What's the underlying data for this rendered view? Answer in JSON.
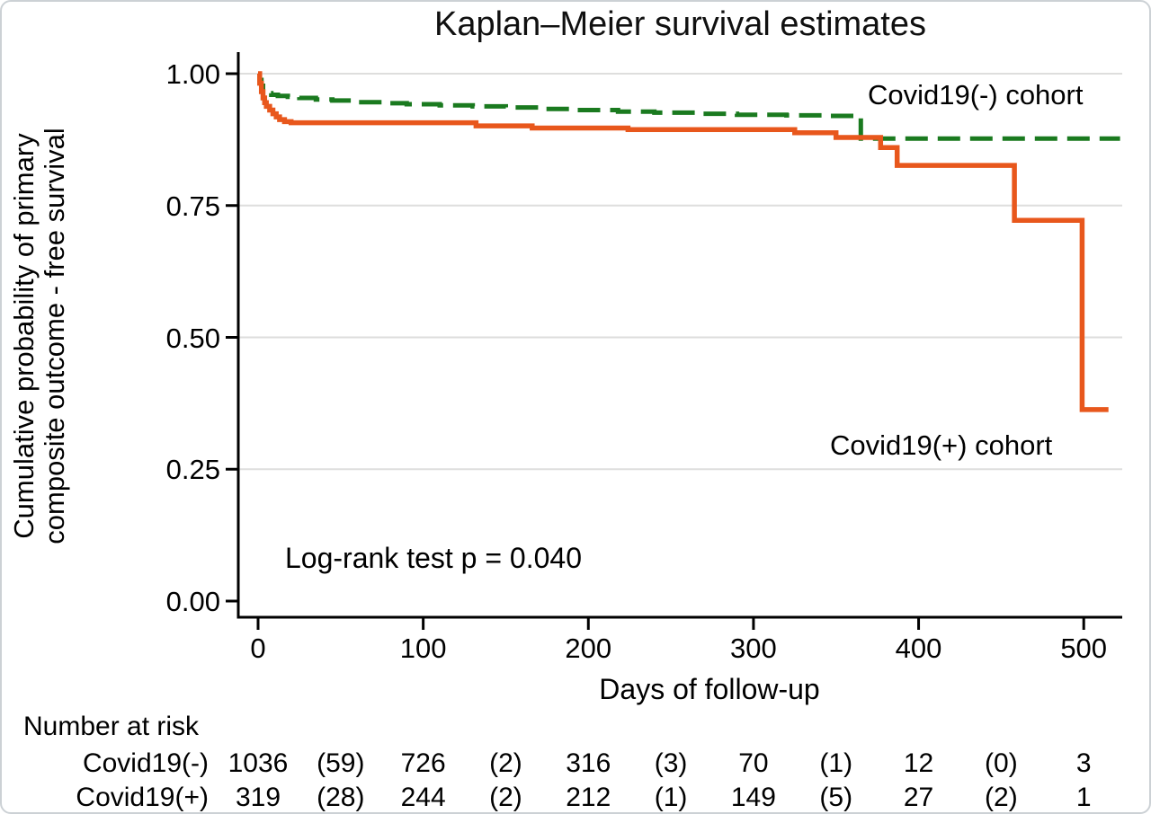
{
  "figure": {
    "title": "Kaplan–Meier survival estimates",
    "y_axis": {
      "label_line1": "Cumulative probability of primary",
      "label_line2": "composite outcome - free survival",
      "ticks": [
        {
          "label": "1.00",
          "v": 1.0
        },
        {
          "label": "0.75",
          "v": 0.75
        },
        {
          "label": "0.50",
          "v": 0.5
        },
        {
          "label": "0.25",
          "v": 0.25
        },
        {
          "label": "0.00",
          "v": 0.0
        }
      ]
    },
    "x_axis": {
      "title": "Days of follow-up",
      "ticks": [
        {
          "label": "0",
          "v": 0
        },
        {
          "label": "100",
          "v": 100
        },
        {
          "label": "200",
          "v": 200
        },
        {
          "label": "300",
          "v": 300
        },
        {
          "label": "400",
          "v": 400
        },
        {
          "label": "500",
          "v": 500
        }
      ]
    },
    "annotations": {
      "covid_neg_label": "Covid19(-) cohort",
      "covid_pos_label": "Covid19(+) cohort",
      "logrank_text": "Log-rank test p = 0.040"
    },
    "colors": {
      "covid_neg": "#1a7a1f",
      "covid_pos": "#e8571c",
      "gridline": "#dededd",
      "axis": "#000000"
    }
  },
  "chart_data": {
    "type": "line",
    "subtype": "kaplan-meier-step",
    "title": "Kaplan–Meier survival estimates",
    "xlabel": "Days of follow-up",
    "ylabel": "Cumulative probability of primary composite outcome - free survival",
    "xlim": [
      -12,
      523
    ],
    "ylim": [
      -0.03,
      1.02
    ],
    "grid": "horizontal",
    "legend_position": "in-plot text labels",
    "logrank_p": "0.040",
    "series": [
      {
        "name": "Covid19(-) cohort",
        "color": "#1a7a1f",
        "style": "dashed",
        "end_day": 522,
        "steps": [
          [
            0,
            1.0
          ],
          [
            1,
            0.988
          ],
          [
            2,
            0.977
          ],
          [
            3,
            0.97
          ],
          [
            5,
            0.963
          ],
          [
            8,
            0.96
          ],
          [
            12,
            0.958
          ],
          [
            18,
            0.956
          ],
          [
            25,
            0.954
          ],
          [
            35,
            0.951
          ],
          [
            45,
            0.949
          ],
          [
            60,
            0.946
          ],
          [
            75,
            0.944
          ],
          [
            90,
            0.942
          ],
          [
            110,
            0.94
          ],
          [
            130,
            0.938
          ],
          [
            150,
            0.936
          ],
          [
            170,
            0.933
          ],
          [
            190,
            0.931
          ],
          [
            218,
            0.928
          ],
          [
            240,
            0.926
          ],
          [
            265,
            0.924
          ],
          [
            290,
            0.922
          ],
          [
            320,
            0.921
          ],
          [
            345,
            0.92
          ],
          [
            365,
            0.877
          ]
        ]
      },
      {
        "name": "Covid19(+) cohort",
        "color": "#e8571c",
        "style": "solid",
        "end_day": 515,
        "steps": [
          [
            0,
            1.0
          ],
          [
            1,
            0.982
          ],
          [
            2,
            0.966
          ],
          [
            3,
            0.954
          ],
          [
            4,
            0.945
          ],
          [
            5,
            0.938
          ],
          [
            7,
            0.931
          ],
          [
            9,
            0.924
          ],
          [
            11,
            0.918
          ],
          [
            13,
            0.913
          ],
          [
            16,
            0.909
          ],
          [
            20,
            0.907
          ],
          [
            132,
            0.901
          ],
          [
            166,
            0.897
          ],
          [
            224,
            0.894
          ],
          [
            325,
            0.888
          ],
          [
            350,
            0.879
          ],
          [
            377,
            0.86
          ],
          [
            387,
            0.826
          ],
          [
            458,
            0.722
          ],
          [
            499,
            0.363
          ]
        ]
      }
    ]
  },
  "risk_table": {
    "heading": "Number at risk",
    "column_days": [
      0,
      50,
      100,
      150,
      200,
      250,
      300,
      350,
      400,
      450,
      500
    ],
    "rows": [
      {
        "label": "Covid19(-)",
        "values": [
          "1036",
          "(59)",
          "726",
          "(2)",
          "316",
          "(3)",
          "70",
          "(1)",
          "12",
          "(0)",
          "3"
        ]
      },
      {
        "label": "Covid19(+)",
        "values": [
          "319",
          "(28)",
          "244",
          "(2)",
          "212",
          "(1)",
          "149",
          "(5)",
          "27",
          "(2)",
          "1"
        ]
      }
    ]
  }
}
